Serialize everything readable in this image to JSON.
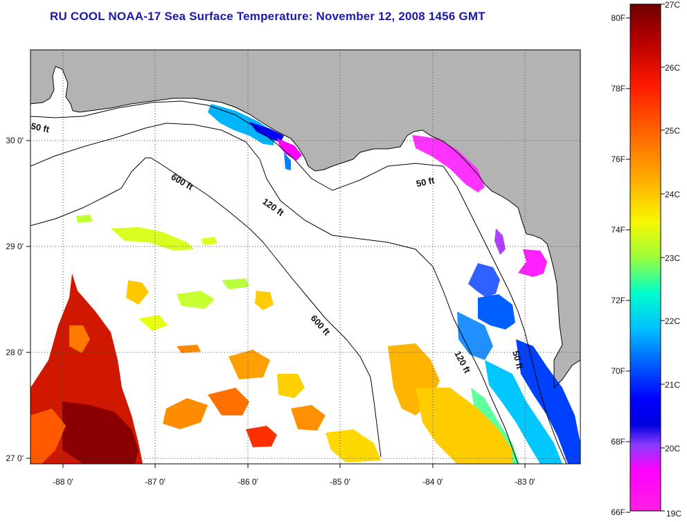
{
  "title": "RU COOL  NOAA-17  Sea Surface Temperature:  November 12, 2008 1456 GMT",
  "map": {
    "lon_range": [
      -88.3,
      -82.4
    ],
    "lat_range": [
      26.95,
      30.85
    ],
    "lon_ticks": [
      {
        "value": -88,
        "label": "-88 0'"
      },
      {
        "value": -87,
        "label": "-87 0'"
      },
      {
        "value": -86,
        "label": "-86 0'"
      },
      {
        "value": -85,
        "label": "-85 0'"
      },
      {
        "value": -84,
        "label": "-84 0'"
      },
      {
        "value": -83,
        "label": "-83 0'"
      }
    ],
    "lat_ticks": [
      {
        "value": 30,
        "label": "30 0'"
      },
      {
        "value": 29,
        "label": "29 0'"
      },
      {
        "value": 28,
        "label": "28 0'"
      },
      {
        "value": 27,
        "label": "27 0'"
      }
    ],
    "contour_labels": {
      "a": "50 ft",
      "b": "600 ft",
      "c": "120 ft",
      "d": "50 ft",
      "e": "600 ft",
      "f": "120 ft",
      "g": "50 ft"
    },
    "colors": {
      "land": "#b3b3b3",
      "ocean": "#ffffff",
      "frame": "#000000"
    }
  },
  "colorbar": {
    "fahrenheit": [
      "80F",
      "78F",
      "76F",
      "74F",
      "72F",
      "70F",
      "68F",
      "66F"
    ],
    "celsius": [
      "27C",
      "26C",
      "25C",
      "24C",
      "23C",
      "22C",
      "21C",
      "20C",
      "19C"
    ],
    "stops": [
      "#7a0000",
      "#d01000",
      "#ff2a00",
      "#ff8c00",
      "#ffd000",
      "#f2ff00",
      "#7dff40",
      "#00ffd0",
      "#00c8ff",
      "#0060ff",
      "#0000ff",
      "#8a3cff",
      "#ff00ff"
    ]
  }
}
